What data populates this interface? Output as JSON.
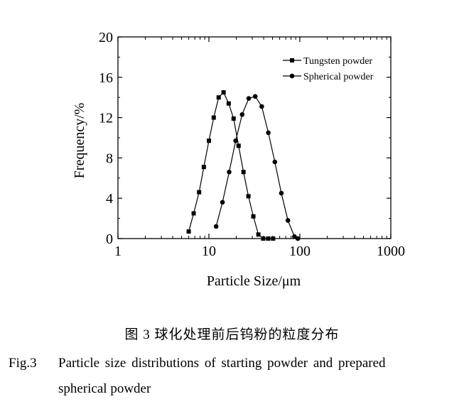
{
  "chart_data": {
    "type": "line",
    "xscale": "log",
    "xlabel": "Particle Size/μm",
    "ylabel": "Frequency/%",
    "xlim": [
      1,
      1000
    ],
    "ylim": [
      0,
      20
    ],
    "xticks": [
      1,
      10,
      100,
      1000
    ],
    "yticks": [
      0,
      4,
      8,
      12,
      16,
      20
    ],
    "grid": false,
    "legend_position": "top-right",
    "series": [
      {
        "name": "Tungsten powder",
        "marker": "square",
        "x": [
          6,
          6.8,
          7.8,
          8.8,
          10.0,
          11.3,
          12.8,
          14.5,
          16.5,
          18.7,
          21.2,
          24.0,
          27.2,
          30.8,
          35.0,
          39.6,
          44.9,
          50.8
        ],
        "y": [
          0.7,
          2.5,
          4.6,
          7.1,
          9.7,
          12.0,
          14.0,
          14.5,
          13.4,
          11.9,
          9.2,
          6.6,
          4.2,
          2.2,
          0.4,
          0.0,
          0.0,
          0.0
        ]
      },
      {
        "name": "Spherical powder",
        "marker": "circle",
        "x": [
          12,
          14.1,
          16.7,
          19.7,
          23.2,
          27.4,
          32.3,
          38.1,
          45.0,
          53.1,
          62.6,
          73.9,
          87.2,
          95
        ],
        "y": [
          1.2,
          3.6,
          6.6,
          9.7,
          12.3,
          13.9,
          14.1,
          13.1,
          10.5,
          7.6,
          4.5,
          1.8,
          0.2,
          0.0
        ]
      }
    ]
  },
  "captions": {
    "cn": "图 3   球化处理前后钨粉的粒度分布",
    "en_label": "Fig.3",
    "en_line1": "Particle  size  distributions  of starting  powder  and  prepared",
    "en_line2": "spherical powder"
  }
}
